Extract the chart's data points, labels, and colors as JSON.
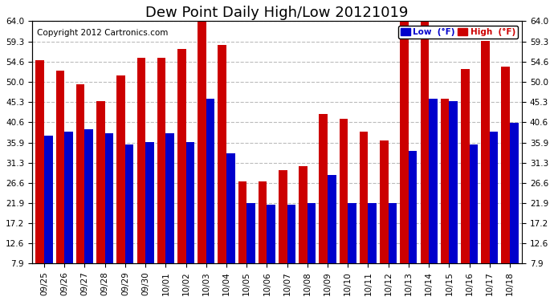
{
  "title": "Dew Point Daily High/Low 20121019",
  "copyright": "Copyright 2012 Cartronics.com",
  "legend_low": "Low  (°F)",
  "legend_high": "High  (°F)",
  "dates": [
    "09/25",
    "09/26",
    "09/27",
    "09/28",
    "09/29",
    "09/30",
    "10/01",
    "10/02",
    "10/03",
    "10/04",
    "10/05",
    "10/06",
    "10/07",
    "10/08",
    "10/09",
    "10/10",
    "10/11",
    "10/12",
    "10/13",
    "10/14",
    "10/15",
    "10/16",
    "10/17",
    "10/18"
  ],
  "low_values": [
    37.5,
    38.5,
    39.0,
    38.0,
    35.5,
    36.0,
    38.0,
    36.0,
    46.0,
    33.5,
    22.0,
    21.5,
    21.5,
    22.0,
    28.5,
    22.0,
    22.0,
    22.0,
    34.0,
    46.0,
    45.5,
    35.5,
    38.5,
    40.5
  ],
  "high_values": [
    55.0,
    52.5,
    49.5,
    45.5,
    51.5,
    55.5,
    55.5,
    57.5,
    64.0,
    58.5,
    27.0,
    27.0,
    29.5,
    30.5,
    42.5,
    41.5,
    38.5,
    36.5,
    64.0,
    64.0,
    46.0,
    53.0,
    59.5,
    53.5
  ],
  "low_color": "#0000cc",
  "high_color": "#cc0000",
  "bg_color": "#ffffff",
  "plot_bg_color": "#ffffff",
  "grid_color": "#bbbbbb",
  "yticks": [
    7.9,
    12.6,
    17.2,
    21.9,
    26.6,
    31.3,
    35.9,
    40.6,
    45.3,
    50.0,
    54.6,
    59.3,
    64.0
  ],
  "ymin": 7.9,
  "ymax": 64.0,
  "title_fontsize": 13,
  "copyright_fontsize": 7.5,
  "tick_fontsize": 7.5
}
